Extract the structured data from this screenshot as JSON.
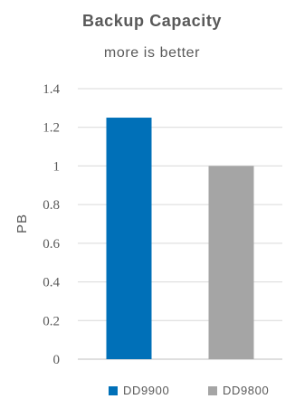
{
  "chart_data": {
    "type": "bar",
    "title": "Backup Capacity",
    "subtitle": "more is better",
    "ylabel": "PB",
    "xlabel": "",
    "ylim": [
      0,
      1.4
    ],
    "yticks": [
      "0",
      "0.2",
      "0.4",
      "0.6",
      "0.8",
      "1",
      "1.2",
      "1.4"
    ],
    "grid": true,
    "legend_position": "bottom",
    "series": [
      {
        "name": "DD9900",
        "value": 1.25,
        "color": "#0070b8"
      },
      {
        "name": "DD9800",
        "value": 1.0,
        "color": "#a5a5a5"
      }
    ]
  }
}
